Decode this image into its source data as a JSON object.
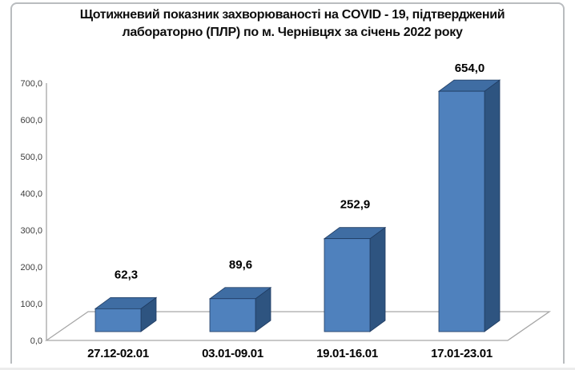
{
  "title": {
    "line1": "Щотижневий показник захворюваності на COVID - 19, підтверджений",
    "line2": "лабораторно (ПЛР) по м. Чернівцях за січень 2022 року"
  },
  "chart_data": {
    "type": "bar",
    "style": "3d-column",
    "title": "Щотижневий показник захворюваності на COVID - 19, підтверджений лабораторно (ПЛР) по м. Чернівцях за січень 2022 року",
    "categories": [
      "27.12-02.01",
      "03.01-09.01",
      "19.01-16.01",
      "17.01-23.01"
    ],
    "values": [
      62.3,
      89.6,
      252.9,
      654.0
    ],
    "value_labels": [
      "62,3",
      "89,6",
      "252,9",
      "654,0"
    ],
    "y_tick_labels": [
      "0,0",
      "100,0",
      "200,0",
      "300,0",
      "400,0",
      "500,0",
      "600,0",
      "700,0"
    ],
    "y_tick_step": 100,
    "ylim": [
      0,
      700
    ],
    "xlabel": "",
    "ylabel": "",
    "grid": "none",
    "legend": "none",
    "colors": {
      "bar_front": "#4f81bd",
      "bar_top": "#3f6da3",
      "bar_side": "#2e5480",
      "bar_outline": "#1f3b61",
      "axis_line": "#a6a6a6",
      "frame_border": "#b9bcbf",
      "text": "#000000"
    }
  }
}
